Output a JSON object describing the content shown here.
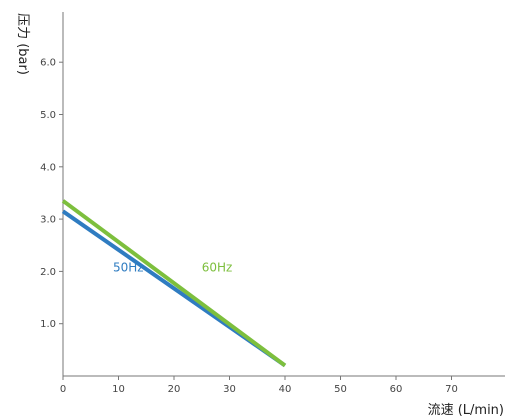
{
  "chart_data": {
    "type": "line",
    "title": "",
    "xlabel": "流速 (L/min)",
    "ylabel": "压力 (bar)",
    "xlim": [
      0,
      80
    ],
    "ylim": [
      0,
      7
    ],
    "x_ticks": [
      {
        "value": 0,
        "label": "0"
      },
      {
        "value": 10,
        "label": "10"
      },
      {
        "value": 20,
        "label": "20"
      },
      {
        "value": 30,
        "label": "30"
      },
      {
        "value": 40,
        "label": "40"
      },
      {
        "value": 50,
        "label": "50"
      },
      {
        "value": 60,
        "label": "60"
      },
      {
        "value": 70,
        "label": "70"
      }
    ],
    "y_ticks": [
      {
        "value": 1,
        "label": "1.0"
      },
      {
        "value": 2,
        "label": "2.0"
      },
      {
        "value": 3,
        "label": "3.0"
      },
      {
        "value": 4,
        "label": "4.0"
      },
      {
        "value": 5,
        "label": "5.0"
      },
      {
        "value": 6,
        "label": "6.0"
      }
    ],
    "grid": false,
    "series": [
      {
        "name": "50Hz",
        "color": "#2f7cc1",
        "label_at": [
          9,
          2.0
        ],
        "points": [
          [
            0,
            3.15
          ],
          [
            40,
            0.2
          ]
        ]
      },
      {
        "name": "60Hz",
        "color": "#7dbf3d",
        "label_at": [
          25,
          2.0
        ],
        "points": [
          [
            0,
            3.35
          ],
          [
            40,
            0.2
          ]
        ]
      }
    ]
  }
}
